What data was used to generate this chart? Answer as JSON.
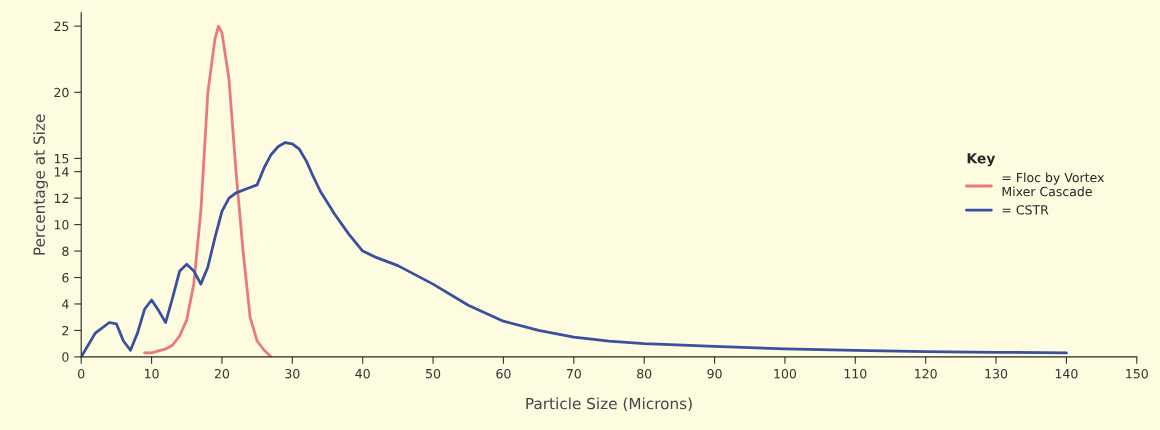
{
  "chart_data": {
    "type": "line",
    "xlabel": "Particle Size (Microns)",
    "ylabel": "Percentage at Size",
    "legend_title": "Key",
    "legend": "right",
    "grid": false,
    "marker": "none",
    "line_style": "solid",
    "xlim": [
      0,
      150
    ],
    "xticks": [
      0,
      10,
      20,
      30,
      40,
      50,
      60,
      70,
      80,
      90,
      100,
      110,
      120,
      130,
      140,
      150
    ],
    "ylim": [
      0,
      26
    ],
    "yticks": [
      0,
      2,
      4,
      6,
      8,
      10,
      12,
      14,
      15,
      20,
      25
    ],
    "series": [
      {
        "name": "= Floc by Vortex\nMixer Cascade",
        "color": "#e87a7a",
        "x": [
          9,
          10,
          12,
          13,
          14,
          15,
          16,
          17,
          18,
          19,
          19.5,
          20,
          21,
          22,
          23,
          24,
          25,
          26,
          27
        ],
        "values": [
          0.3,
          0.3,
          0.6,
          0.9,
          1.6,
          2.8,
          5.5,
          11,
          20,
          24,
          25,
          24.5,
          21,
          14,
          8,
          3,
          1.2,
          0.5,
          0
        ]
      },
      {
        "name": "= CSTR",
        "color": "#3a4fa0",
        "x": [
          0,
          2,
          4,
          5,
          6,
          7,
          8,
          9,
          10,
          11,
          12,
          13,
          14,
          15,
          16,
          17,
          18,
          19,
          20,
          21,
          22,
          24,
          25,
          26,
          27,
          28,
          29,
          30,
          31,
          32,
          33,
          34,
          36,
          38,
          40,
          42,
          45,
          50,
          55,
          60,
          65,
          70,
          75,
          80,
          90,
          100,
          110,
          120,
          130,
          140
        ],
        "values": [
          0,
          1.8,
          2.6,
          2.5,
          1.2,
          0.5,
          1.8,
          3.6,
          4.3,
          3.5,
          2.6,
          4.5,
          6.5,
          7.0,
          6.5,
          5.5,
          6.8,
          9,
          11,
          12,
          12.4,
          12.8,
          13,
          14.3,
          15.3,
          15.9,
          16.2,
          16.1,
          15.7,
          14.8,
          13.6,
          12.5,
          10.8,
          9.3,
          8.0,
          7.5,
          6.9,
          5.5,
          3.9,
          2.7,
          2.0,
          1.5,
          1.2,
          1.0,
          0.8,
          0.6,
          0.5,
          0.4,
          0.35,
          0.3
        ]
      }
    ]
  }
}
